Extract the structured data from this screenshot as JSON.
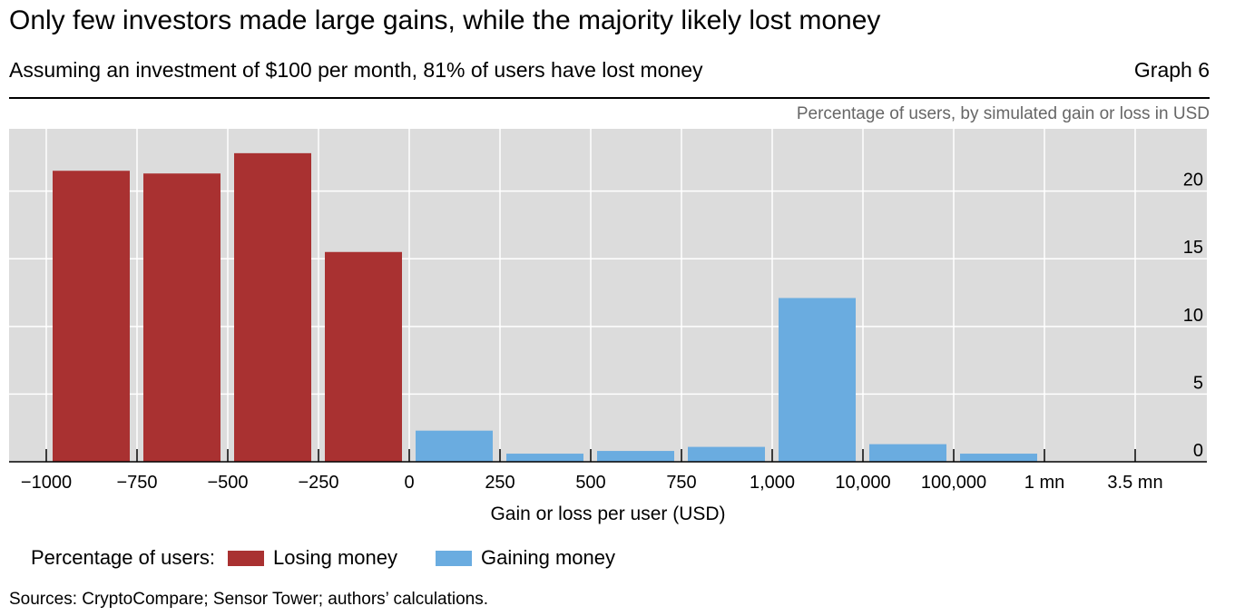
{
  "header": {
    "title": "Only few investors made large gains, while the majority likely lost money",
    "subtitle": "Assuming an investment of $100 per month, 81% of users have lost money",
    "graph_number": "Graph 6",
    "unit_label": "Percentage of users, by simulated gain or loss in USD"
  },
  "legend": {
    "prefix": "Percentage of users:",
    "items": [
      {
        "label": "Losing money",
        "color": "#a93131"
      },
      {
        "label": "Gaining money",
        "color": "#6aace0"
      }
    ]
  },
  "footer": {
    "sources": "Sources: CryptoCompare; Sensor Tower; authors’ calculations."
  },
  "chart_data": {
    "type": "bar",
    "xlabel": "Gain or loss per user (USD)",
    "ylabel": "",
    "ylim": [
      0,
      24.6
    ],
    "yticks": [
      0,
      5,
      10,
      15,
      20
    ],
    "y_axis_side": "right",
    "grid": true,
    "x_tick_labels": [
      "−1000",
      "−750",
      "−500",
      "−250",
      "0",
      "250",
      "500",
      "750",
      "1,000",
      "10,000",
      "100,000",
      "1 mn",
      "3.5 mn"
    ],
    "series": [
      {
        "name": "Losing money",
        "color": "#a93131",
        "values": [
          21.5,
          21.3,
          22.8,
          15.5,
          0,
          0,
          0,
          0,
          0,
          0,
          0,
          0
        ]
      },
      {
        "name": "Gaining money",
        "color": "#6aace0",
        "values": [
          0,
          0,
          0,
          0,
          2.3,
          0.6,
          0.8,
          1.1,
          12.1,
          1.3,
          0.6,
          0
        ]
      }
    ],
    "legend_position": "bottom-left"
  }
}
